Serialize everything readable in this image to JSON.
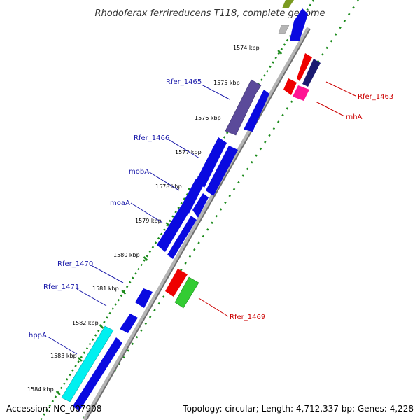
{
  "title": "Rhodoferax ferrireducens T118, complete genome",
  "footer": {
    "accession": "Accession: NC_007908",
    "topology": "Topology: circular; Length: 4,712,337 bp; Genes: 4,228"
  },
  "colors": {
    "background": "#ffffff",
    "backbone": "#808080",
    "ruler_dots": "#1a8a1a",
    "forward_label": "#1a1aaa",
    "reverse_label": "#cc0000"
  },
  "ticks": [
    "1574 kbp",
    "1575 kbp",
    "1576 kbp",
    "1577 kbp",
    "1578 kbp",
    "1579 kbp",
    "1580 kbp",
    "1581 kbp",
    "1582 kbp",
    "1583 kbp",
    "1584 kbp"
  ],
  "labels_forward": [
    "Rfer_1465",
    "Rfer_1466",
    "mobA",
    "moaA",
    "Rfer_1470",
    "Rfer_1471",
    "hppA"
  ],
  "labels_reverse": [
    "Rfer_1463",
    "rnhA",
    "Rfer_1469"
  ],
  "genes": [
    {
      "name": "Rfer_1465",
      "strand": "+",
      "color": "#5b4a9a"
    },
    {
      "name": "Rfer_1466",
      "strand": "+",
      "color": "#0a0ae0"
    },
    {
      "name": "mobA",
      "strand": "+",
      "color": "#0a0ae0"
    },
    {
      "name": "moaA",
      "strand": "+",
      "color": "#0a0ae0"
    },
    {
      "name": "Rfer_1470",
      "strand": "+",
      "color": "#0a0ae0"
    },
    {
      "name": "Rfer_1471",
      "strand": "+",
      "color": "#0a0ae0"
    },
    {
      "name": "hppA",
      "strand": "+",
      "color": "#00e0e0"
    },
    {
      "name": "Rfer_1463",
      "strand": "-",
      "color": "#ee0000"
    },
    {
      "name": "rnhA",
      "strand": "-",
      "color": "#ff1493"
    },
    {
      "name": "Rfer_1469",
      "strand": "-",
      "color": "#33cc33"
    }
  ]
}
